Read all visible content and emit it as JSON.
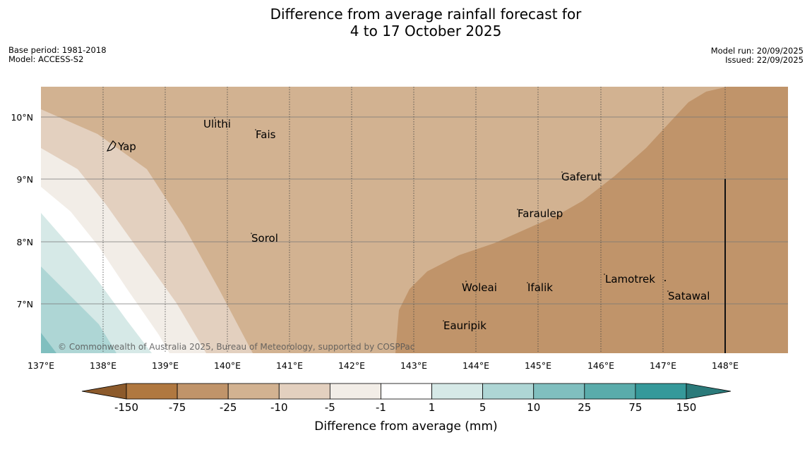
{
  "title_line1": "Difference from average rainfall forecast for",
  "title_line2": "4 to 17 October 2025",
  "base_period": "Base period: 1981-2018",
  "model": "Model: ACCESS-S2",
  "model_run": "Model run: 20/09/2025",
  "issued": "Issued: 22/09/2025",
  "copyright": "© Commonwealth of Australia 2025, Bureau of Meteorology, supported by COSPPac",
  "lon_ticks": [
    "137°E",
    "138°E",
    "139°E",
    "140°E",
    "141°E",
    "142°E",
    "143°E",
    "144°E",
    "145°E",
    "146°E",
    "147°E",
    "148°E"
  ],
  "lat_ticks": [
    "10°N",
    "9°N",
    "8°N",
    "7°N"
  ],
  "places": [
    {
      "name": "Yap"
    },
    {
      "name": "Ulithi"
    },
    {
      "name": "Fais"
    },
    {
      "name": "Gaferut"
    },
    {
      "name": "Faraulep"
    },
    {
      "name": "Sorol"
    },
    {
      "name": "Lamotrek"
    },
    {
      "name": "Woleai"
    },
    {
      "name": "Ifalik"
    },
    {
      "name": "Satawal"
    },
    {
      "name": "Eauripik"
    }
  ],
  "legend": {
    "label": "Difference from average (mm)",
    "ticks": [
      "-150",
      "-75",
      "-25",
      "-10",
      "-5",
      "-1",
      "1",
      "5",
      "10",
      "25",
      "75",
      "150"
    ],
    "colors": [
      "#8c5a2b",
      "#b07840",
      "#c0946a",
      "#d2b291",
      "#e3d0bf",
      "#f2ede7",
      "#ffffff",
      "#d6e9e7",
      "#aed6d5",
      "#80bfbf",
      "#5aacab",
      "#35999a",
      "#2b7a7a"
    ]
  }
}
